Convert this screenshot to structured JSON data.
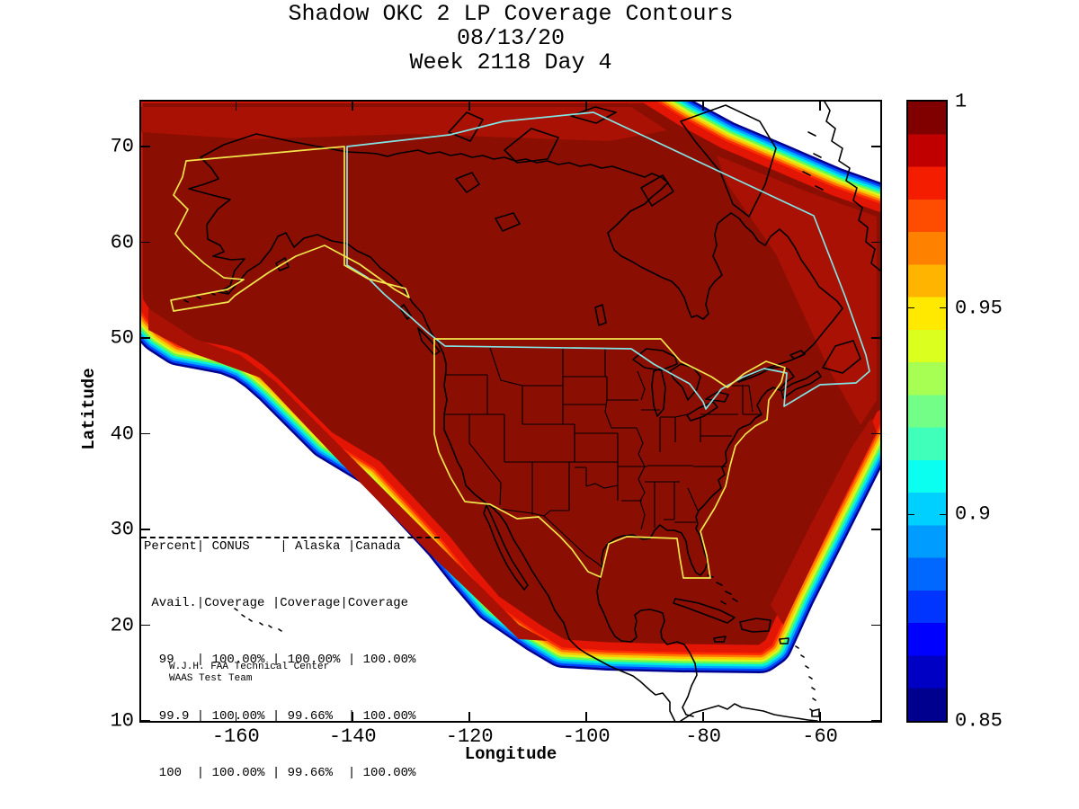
{
  "figure": {
    "title_lines": [
      "Shadow OKC 2 LP Coverage Contours",
      "08/13/20",
      "Week 2118 Day 4"
    ],
    "xlabel": "Longitude",
    "ylabel": "Latitude"
  },
  "axes": {
    "x": {
      "min": -176.2,
      "max": -49.7,
      "ticks": [
        -160,
        -140,
        -120,
        -100,
        -80,
        -60
      ],
      "labels": [
        "-160",
        "-140",
        "-120",
        "-100",
        "-80",
        "-60"
      ]
    },
    "y": {
      "min": 10,
      "max": 74.7,
      "ticks": [
        70,
        60,
        50,
        40,
        30,
        20,
        10
      ],
      "labels": [
        "70",
        "60",
        "50",
        "40",
        "30",
        "20",
        "10"
      ]
    }
  },
  "colorbar": {
    "min": 0.85,
    "max": 1,
    "tick_values": [
      1,
      0.95,
      0.9,
      0.85
    ],
    "tick_labels": [
      "1",
      "0.95",
      "0.9",
      "0.85"
    ],
    "stops_top_to_bottom": [
      "#800000",
      "#C00000",
      "#F51D00",
      "#FF4D00",
      "#FF8100",
      "#FFB500",
      "#FFE900",
      "#DBFF1F",
      "#A7FF53",
      "#73FF87",
      "#3FFFBB",
      "#0AFFF0",
      "#00D0FF",
      "#009CFF",
      "#0068FF",
      "#0034FF",
      "#0000FF",
      "#0000C4",
      "#00008F"
    ]
  },
  "stats_table": {
    "lines": [
      "Percent| CONUS    | Alaska |Canada",
      " Avail.|Coverage |Coverage|Coverage",
      "  99   | 100.00% | 100.00% | 100.00%",
      "  99.9 | 100.00% | 99.66%  | 100.00%",
      "  100  | 100.00% | 99.66%  | 100.00%"
    ]
  },
  "credit": {
    "lines": [
      "W.J.H. FAA Technical Center",
      "WAAS Test Team"
    ]
  },
  "map_colors": {
    "coverage_interior": "#8B0E03",
    "coverage_secondary": "#A81104",
    "coverage_rim": "#E31505",
    "conus_alaska_outline": "#F1E54B",
    "canada_outline": "#84E4E4",
    "coastline": "#000000"
  },
  "chart_data": {
    "type": "heatmap",
    "subtype": "filled-contour-coverage-map",
    "title": "Shadow OKC 2 LP Coverage Contours",
    "subtitle": [
      "08/13/20",
      "Week 2118 Day 4"
    ],
    "xlabel": "Longitude",
    "ylabel": "Latitude",
    "xlim": [
      -176.2,
      -49.7
    ],
    "ylim": [
      10,
      74.7
    ],
    "x_ticks": [
      -160,
      -140,
      -120,
      -100,
      -80,
      -60
    ],
    "y_ticks": [
      10,
      20,
      30,
      40,
      50,
      60,
      70
    ],
    "grid": false,
    "colorbar": {
      "range": [
        0.85,
        1
      ],
      "tick_values": [
        1,
        0.95,
        0.9,
        0.85
      ],
      "colormap": "jet",
      "position": "right"
    },
    "description": "LP availability coverage contours over North America; interior of coverage region at ~1.0 (dark red) with rainbow fringe decreasing to 0.85 (dark blue) at the boundary; white outside coverage.",
    "regions_outlined": [
      "CONUS (yellow)",
      "Alaska (yellow)",
      "Canada (cyan)"
    ],
    "coverage_stats": {
      "columns": [
        "Percent Avail.",
        "CONUS Coverage",
        "Alaska Coverage",
        "Canada Coverage"
      ],
      "rows": [
        [
          "99",
          "100.00%",
          "100.00%",
          "100.00%"
        ],
        [
          "99.9",
          "100.00%",
          "99.66%",
          "100.00%"
        ],
        [
          "100",
          "100.00%",
          "99.66%",
          "100.00%"
        ]
      ]
    },
    "annotations": [
      "W.J.H. FAA Technical Center",
      "WAAS Test Team"
    ]
  }
}
